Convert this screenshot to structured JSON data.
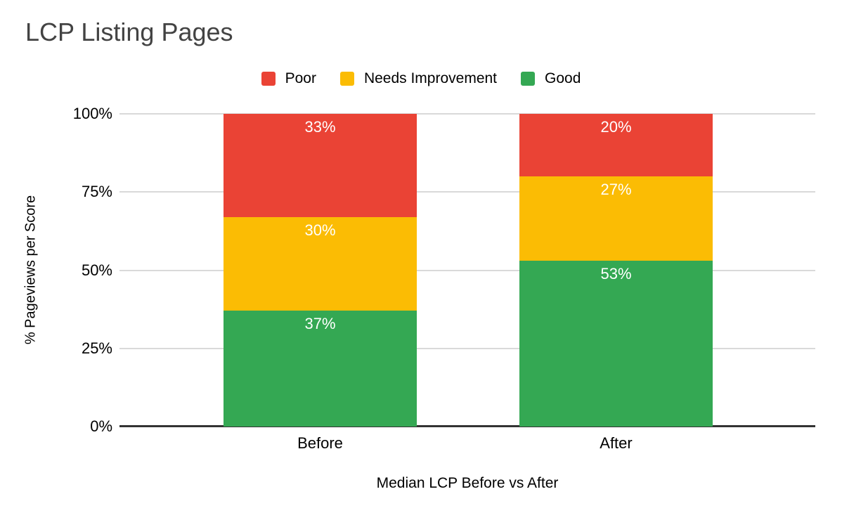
{
  "title": "LCP Listing Pages",
  "chart_data": {
    "type": "bar",
    "stacked": true,
    "categories": [
      "Before",
      "After"
    ],
    "series": [
      {
        "name": "Poor",
        "color": "#EA4335",
        "values": [
          33,
          20
        ],
        "labels": [
          "33%",
          "20%"
        ]
      },
      {
        "name": "Needs Improvement",
        "color": "#FBBC04",
        "values": [
          30,
          27
        ],
        "labels": [
          "30%",
          "27%"
        ]
      },
      {
        "name": "Good",
        "color": "#34A853",
        "values": [
          37,
          53
        ],
        "labels": [
          "37%",
          "53%"
        ]
      }
    ],
    "xlabel": "Median LCP Before vs After",
    "ylabel": "% Pageviews per Score",
    "yticks": [
      "0%",
      "25%",
      "50%",
      "75%",
      "100%"
    ],
    "ylim": [
      0,
      100
    ],
    "grid": true,
    "legend_position": "top",
    "colors": {
      "grid": "#D9D9D9",
      "baseline": "#333333",
      "title": "#434343",
      "value_label": "#FFFFFF"
    }
  }
}
